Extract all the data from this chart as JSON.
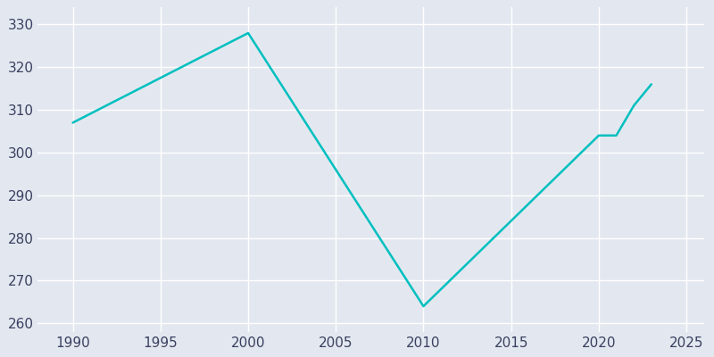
{
  "years": [
    1990,
    2000,
    2010,
    2020,
    2021,
    2022,
    2023
  ],
  "population": [
    307,
    328,
    264,
    304,
    304,
    311,
    316
  ],
  "line_color": "#00BFBF",
  "bg_color": "#E3E8F0",
  "grid_color": "#FFFFFF",
  "tick_color": "#3A4060",
  "xlim": [
    1988,
    2026
  ],
  "ylim": [
    258,
    334
  ],
  "xticks": [
    1990,
    1995,
    2000,
    2005,
    2010,
    2015,
    2020,
    2025
  ],
  "yticks": [
    260,
    270,
    280,
    290,
    300,
    310,
    320,
    330
  ],
  "linewidth": 1.8,
  "tick_fontsize": 11
}
